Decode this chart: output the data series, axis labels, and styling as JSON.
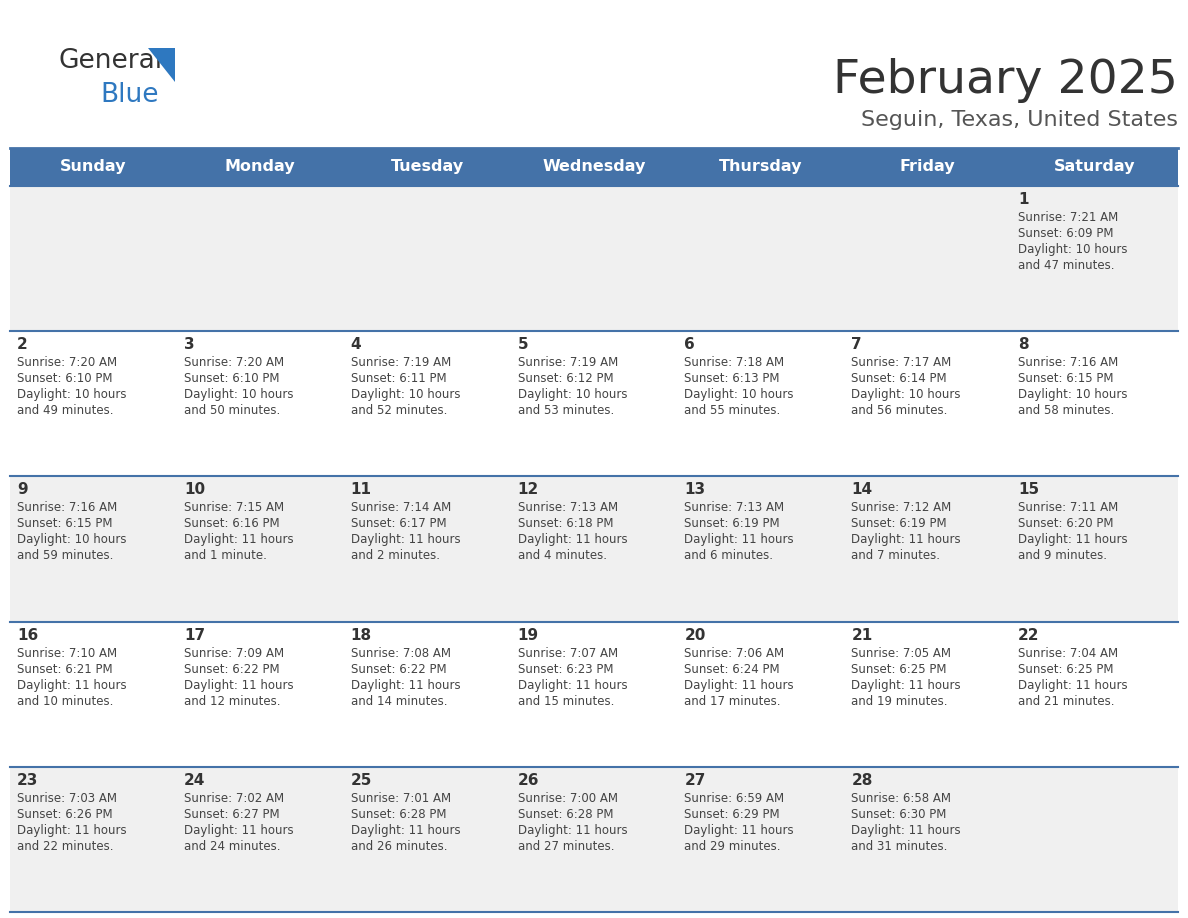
{
  "title": "February 2025",
  "subtitle": "Seguin, Texas, United States",
  "header_color": "#4472a8",
  "header_text_color": "#ffffff",
  "day_names": [
    "Sunday",
    "Monday",
    "Tuesday",
    "Wednesday",
    "Thursday",
    "Friday",
    "Saturday"
  ],
  "row_bg_even": "#f0f0f0",
  "row_bg_odd": "#ffffff",
  "border_color": "#4472a8",
  "text_color": "#444444",
  "date_color": "#333333",
  "logo_general_color": "#333333",
  "logo_blue_color": "#2e78c0",
  "days": [
    {
      "date": 1,
      "col": 6,
      "row": 0,
      "sunrise": "7:21 AM",
      "sunset": "6:09 PM",
      "daylight": "10 hours and 47 minutes."
    },
    {
      "date": 2,
      "col": 0,
      "row": 1,
      "sunrise": "7:20 AM",
      "sunset": "6:10 PM",
      "daylight": "10 hours and 49 minutes."
    },
    {
      "date": 3,
      "col": 1,
      "row": 1,
      "sunrise": "7:20 AM",
      "sunset": "6:10 PM",
      "daylight": "10 hours and 50 minutes."
    },
    {
      "date": 4,
      "col": 2,
      "row": 1,
      "sunrise": "7:19 AM",
      "sunset": "6:11 PM",
      "daylight": "10 hours and 52 minutes."
    },
    {
      "date": 5,
      "col": 3,
      "row": 1,
      "sunrise": "7:19 AM",
      "sunset": "6:12 PM",
      "daylight": "10 hours and 53 minutes."
    },
    {
      "date": 6,
      "col": 4,
      "row": 1,
      "sunrise": "7:18 AM",
      "sunset": "6:13 PM",
      "daylight": "10 hours and 55 minutes."
    },
    {
      "date": 7,
      "col": 5,
      "row": 1,
      "sunrise": "7:17 AM",
      "sunset": "6:14 PM",
      "daylight": "10 hours and 56 minutes."
    },
    {
      "date": 8,
      "col": 6,
      "row": 1,
      "sunrise": "7:16 AM",
      "sunset": "6:15 PM",
      "daylight": "10 hours and 58 minutes."
    },
    {
      "date": 9,
      "col": 0,
      "row": 2,
      "sunrise": "7:16 AM",
      "sunset": "6:15 PM",
      "daylight": "10 hours and 59 minutes."
    },
    {
      "date": 10,
      "col": 1,
      "row": 2,
      "sunrise": "7:15 AM",
      "sunset": "6:16 PM",
      "daylight": "11 hours and 1 minute."
    },
    {
      "date": 11,
      "col": 2,
      "row": 2,
      "sunrise": "7:14 AM",
      "sunset": "6:17 PM",
      "daylight": "11 hours and 2 minutes."
    },
    {
      "date": 12,
      "col": 3,
      "row": 2,
      "sunrise": "7:13 AM",
      "sunset": "6:18 PM",
      "daylight": "11 hours and 4 minutes."
    },
    {
      "date": 13,
      "col": 4,
      "row": 2,
      "sunrise": "7:13 AM",
      "sunset": "6:19 PM",
      "daylight": "11 hours and 6 minutes."
    },
    {
      "date": 14,
      "col": 5,
      "row": 2,
      "sunrise": "7:12 AM",
      "sunset": "6:19 PM",
      "daylight": "11 hours and 7 minutes."
    },
    {
      "date": 15,
      "col": 6,
      "row": 2,
      "sunrise": "7:11 AM",
      "sunset": "6:20 PM",
      "daylight": "11 hours and 9 minutes."
    },
    {
      "date": 16,
      "col": 0,
      "row": 3,
      "sunrise": "7:10 AM",
      "sunset": "6:21 PM",
      "daylight": "11 hours and 10 minutes."
    },
    {
      "date": 17,
      "col": 1,
      "row": 3,
      "sunrise": "7:09 AM",
      "sunset": "6:22 PM",
      "daylight": "11 hours and 12 minutes."
    },
    {
      "date": 18,
      "col": 2,
      "row": 3,
      "sunrise": "7:08 AM",
      "sunset": "6:22 PM",
      "daylight": "11 hours and 14 minutes."
    },
    {
      "date": 19,
      "col": 3,
      "row": 3,
      "sunrise": "7:07 AM",
      "sunset": "6:23 PM",
      "daylight": "11 hours and 15 minutes."
    },
    {
      "date": 20,
      "col": 4,
      "row": 3,
      "sunrise": "7:06 AM",
      "sunset": "6:24 PM",
      "daylight": "11 hours and 17 minutes."
    },
    {
      "date": 21,
      "col": 5,
      "row": 3,
      "sunrise": "7:05 AM",
      "sunset": "6:25 PM",
      "daylight": "11 hours and 19 minutes."
    },
    {
      "date": 22,
      "col": 6,
      "row": 3,
      "sunrise": "7:04 AM",
      "sunset": "6:25 PM",
      "daylight": "11 hours and 21 minutes."
    },
    {
      "date": 23,
      "col": 0,
      "row": 4,
      "sunrise": "7:03 AM",
      "sunset": "6:26 PM",
      "daylight": "11 hours and 22 minutes."
    },
    {
      "date": 24,
      "col": 1,
      "row": 4,
      "sunrise": "7:02 AM",
      "sunset": "6:27 PM",
      "daylight": "11 hours and 24 minutes."
    },
    {
      "date": 25,
      "col": 2,
      "row": 4,
      "sunrise": "7:01 AM",
      "sunset": "6:28 PM",
      "daylight": "11 hours and 26 minutes."
    },
    {
      "date": 26,
      "col": 3,
      "row": 4,
      "sunrise": "7:00 AM",
      "sunset": "6:28 PM",
      "daylight": "11 hours and 27 minutes."
    },
    {
      "date": 27,
      "col": 4,
      "row": 4,
      "sunrise": "6:59 AM",
      "sunset": "6:29 PM",
      "daylight": "11 hours and 29 minutes."
    },
    {
      "date": 28,
      "col": 5,
      "row": 4,
      "sunrise": "6:58 AM",
      "sunset": "6:30 PM",
      "daylight": "11 hours and 31 minutes."
    }
  ]
}
